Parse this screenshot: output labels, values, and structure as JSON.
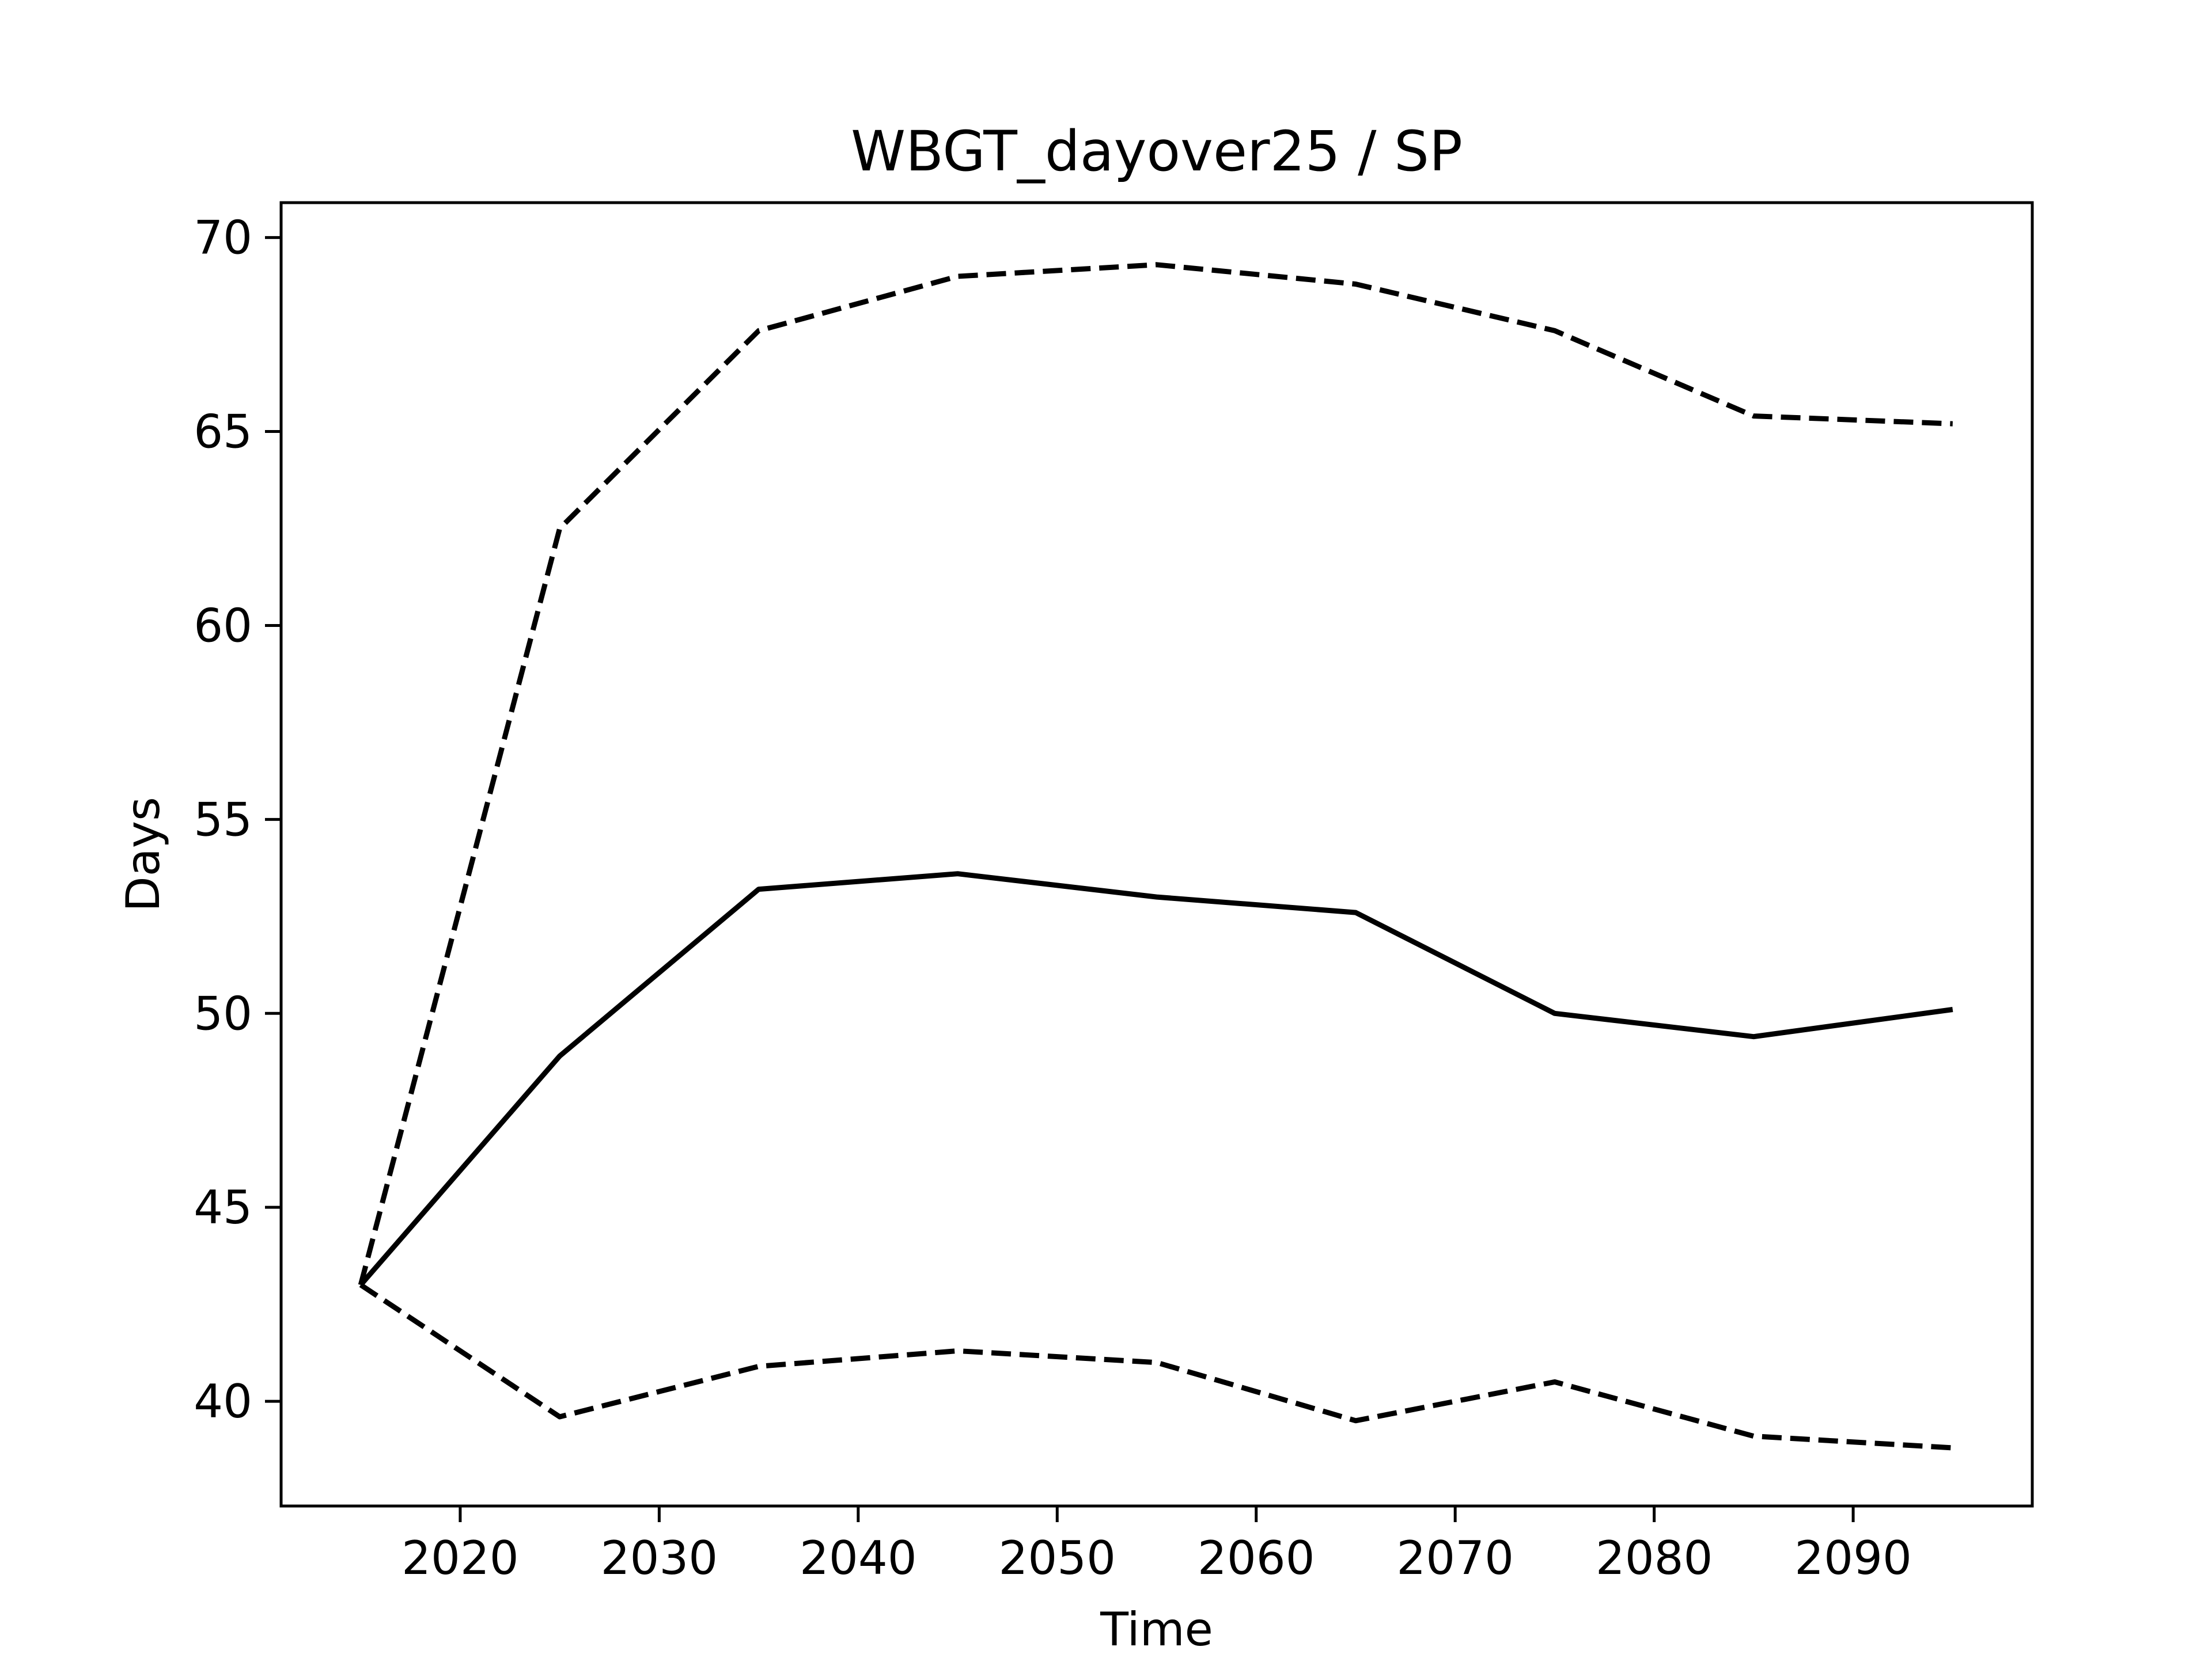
{
  "chart_data": {
    "type": "line",
    "title": "WBGT_dayover25 / SP",
    "xlabel": "Time",
    "ylabel": "Days",
    "xlim": [
      2011,
      2099
    ],
    "ylim": [
      37.3,
      70.9
    ],
    "x_ticks": [
      2020,
      2030,
      2040,
      2050,
      2060,
      2070,
      2080,
      2090
    ],
    "y_ticks": [
      40,
      45,
      50,
      55,
      60,
      65,
      70
    ],
    "grid": false,
    "legend": "none",
    "x": [
      2015,
      2025,
      2035,
      2045,
      2055,
      2065,
      2075,
      2085,
      2095
    ],
    "series": [
      {
        "style": "solid",
        "color": "#000000",
        "values": [
          43.0,
          48.9,
          53.2,
          53.6,
          53.0,
          52.6,
          50.0,
          49.4,
          50.1
        ]
      },
      {
        "style": "dashed",
        "color": "#000000",
        "values": [
          43.0,
          62.5,
          67.6,
          69.0,
          69.3,
          68.8,
          67.6,
          65.4,
          65.2
        ]
      },
      {
        "style": "dashed",
        "color": "#000000",
        "values": [
          43.0,
          39.6,
          40.9,
          41.3,
          41.0,
          39.5,
          40.5,
          39.1,
          38.8
        ]
      }
    ]
  }
}
